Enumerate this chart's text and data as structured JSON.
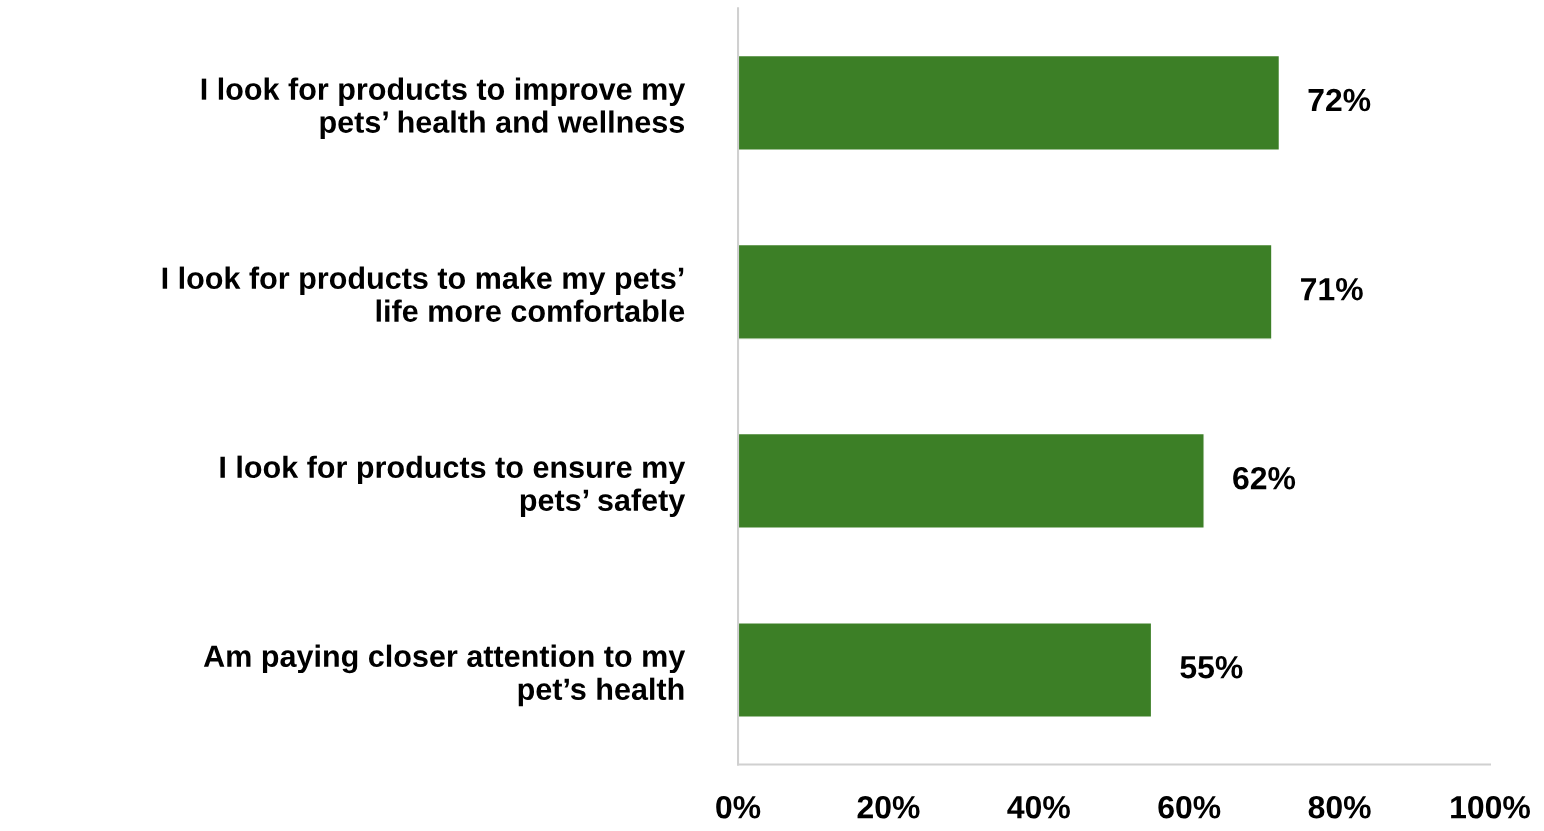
{
  "chart_data": {
    "type": "bar",
    "orientation": "horizontal",
    "categories": [
      "I look for products to improve my\npets’ health and wellness",
      "I look for products to make my pets’\nlife more comfortable",
      "I look for products to ensure my\npets’ safety",
      "Am paying closer attention to my\npet’s health"
    ],
    "values": [
      72,
      71,
      62,
      55
    ],
    "value_labels": [
      "72%",
      "71%",
      "62%",
      "55%"
    ],
    "color": "#3c7f26",
    "xlim": [
      0,
      100
    ],
    "xticks": [
      {
        "value": 0,
        "label": "0%"
      },
      {
        "value": 20,
        "label": "20%"
      },
      {
        "value": 40,
        "label": "40%"
      },
      {
        "value": 60,
        "label": "60%"
      },
      {
        "value": 80,
        "label": "80%"
      },
      {
        "value": 100,
        "label": "100%"
      }
    ],
    "grid": false
  }
}
